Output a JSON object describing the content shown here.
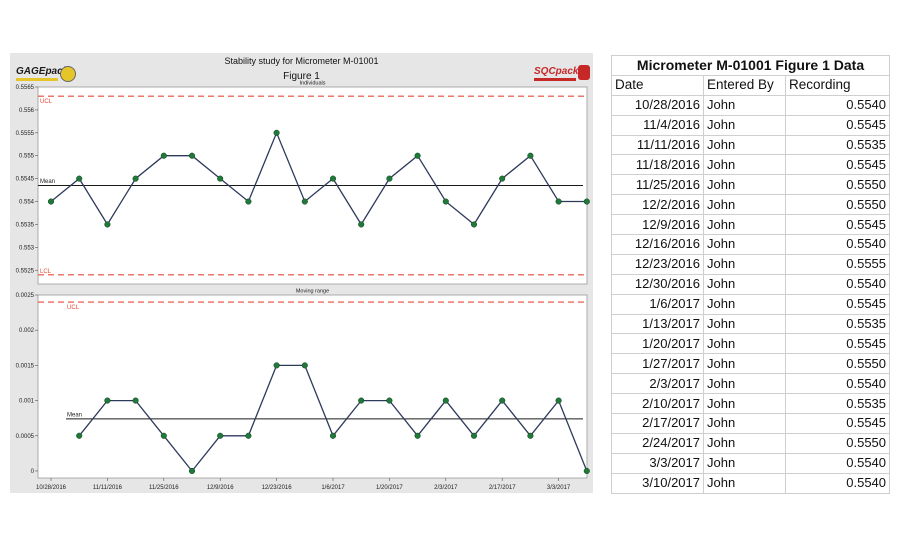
{
  "colors": {
    "panel_bg": "#e6e6e6",
    "plot_bg": "#ffffff",
    "line": "#2e3a5c",
    "point": "#1f7a3a",
    "limit": "#e64a3a",
    "mean": "#1a1a1a"
  },
  "logos": {
    "left_text": "GAGEpack",
    "right_text": "SQCpack"
  },
  "chart_data": [
    {
      "type": "line",
      "title": "Stability study for Micrometer M-01001",
      "subtitle": "Figure 1",
      "panel_label": "Individuals",
      "ylim": [
        0.5522,
        0.5565
      ],
      "yticks": [
        0.5525,
        0.553,
        0.5535,
        0.554,
        0.5545,
        0.555,
        0.5555,
        0.556,
        0.5565
      ],
      "ytick_labels": [
        "0.5525",
        "0.553",
        "0.5535",
        "0.554",
        "0.5545",
        "0.555",
        "0.5555",
        "0.556",
        "0.5565"
      ],
      "ucl": 0.5563,
      "lcl": 0.5524,
      "mean": 0.55435,
      "ucl_label": "UCL",
      "lcl_label": "LCL",
      "mean_label": "Mean",
      "x": [
        "10/28/2016",
        "11/4/2016",
        "11/11/2016",
        "11/18/2016",
        "11/25/2016",
        "12/2/2016",
        "12/9/2016",
        "12/16/2016",
        "12/23/2016",
        "12/30/2016",
        "1/6/2017",
        "1/13/2017",
        "1/20/2017",
        "1/27/2017",
        "2/3/2017",
        "2/10/2017",
        "2/17/2017",
        "2/24/2017",
        "3/3/2017",
        "3/10/2017"
      ],
      "values": [
        0.554,
        0.5545,
        0.5535,
        0.5545,
        0.555,
        0.555,
        0.5545,
        0.554,
        0.5555,
        0.554,
        0.5545,
        0.5535,
        0.5545,
        0.555,
        0.554,
        0.5535,
        0.5545,
        0.555,
        0.554,
        0.554
      ]
    },
    {
      "type": "line",
      "panel_label": "Moving range",
      "ylim": [
        -0.0001,
        0.0025
      ],
      "yticks": [
        0,
        0.0005,
        0.001,
        0.0015,
        0.002,
        0.0025
      ],
      "ytick_labels": [
        "0",
        "0.0005",
        "0.001",
        "0.0015",
        "0.002",
        "0.0025"
      ],
      "ucl": 0.0024,
      "mean": 0.00074,
      "ucl_label": "UCL",
      "mean_label": "Mean",
      "x": [
        "11/4/2016",
        "11/11/2016",
        "11/18/2016",
        "11/25/2016",
        "12/2/2016",
        "12/9/2016",
        "12/16/2016",
        "12/23/2016",
        "12/30/2016",
        "1/6/2017",
        "1/13/2017",
        "1/20/2017",
        "1/27/2017",
        "2/3/2017",
        "2/10/2017",
        "2/17/2017",
        "2/24/2017",
        "3/3/2017",
        "3/10/2017"
      ],
      "values": [
        0.0005,
        0.001,
        0.001,
        0.0005,
        0.0,
        0.0005,
        0.0005,
        0.0015,
        0.0015,
        0.0005,
        0.001,
        0.001,
        0.0005,
        0.001,
        0.0005,
        0.001,
        0.0005,
        0.001,
        0.0
      ],
      "xtick_labels": [
        "10/28/2016",
        "11/11/2016",
        "11/25/2016",
        "12/9/2016",
        "12/23/2016",
        "1/6/2017",
        "1/20/2017",
        "2/3/2017",
        "2/17/2017",
        "3/3/2017"
      ]
    }
  ],
  "table": {
    "title": "Micrometer M-01001 Figure 1 Data",
    "headers": [
      "Date",
      "Entered By",
      "Recording"
    ],
    "rows": [
      [
        "10/28/2016",
        "John",
        "0.5540"
      ],
      [
        "11/4/2016",
        "John",
        "0.5545"
      ],
      [
        "11/11/2016",
        "John",
        "0.5535"
      ],
      [
        "11/18/2016",
        "John",
        "0.5545"
      ],
      [
        "11/25/2016",
        "John",
        "0.5550"
      ],
      [
        "12/2/2016",
        "John",
        "0.5550"
      ],
      [
        "12/9/2016",
        "John",
        "0.5545"
      ],
      [
        "12/16/2016",
        "John",
        "0.5540"
      ],
      [
        "12/23/2016",
        "John",
        "0.5555"
      ],
      [
        "12/30/2016",
        "John",
        "0.5540"
      ],
      [
        "1/6/2017",
        "John",
        "0.5545"
      ],
      [
        "1/13/2017",
        "John",
        "0.5535"
      ],
      [
        "1/20/2017",
        "John",
        "0.5545"
      ],
      [
        "1/27/2017",
        "John",
        "0.5550"
      ],
      [
        "2/3/2017",
        "John",
        "0.5540"
      ],
      [
        "2/10/2017",
        "John",
        "0.5535"
      ],
      [
        "2/17/2017",
        "John",
        "0.5545"
      ],
      [
        "2/24/2017",
        "John",
        "0.5550"
      ],
      [
        "3/3/2017",
        "John",
        "0.5540"
      ],
      [
        "3/10/2017",
        "John",
        "0.5540"
      ]
    ]
  }
}
